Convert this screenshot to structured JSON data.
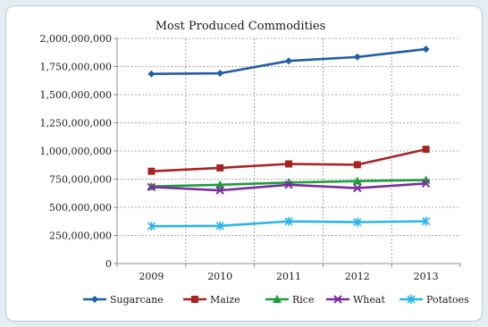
{
  "chart_data": {
    "type": "line",
    "title": "Most Produced Commodities",
    "xlabel": "",
    "ylabel": "",
    "categories": [
      "2009",
      "2010",
      "2011",
      "2012",
      "2013"
    ],
    "ylim": [
      0,
      2000000000
    ],
    "yticks": [
      0,
      250000000,
      500000000,
      750000000,
      1000000000,
      1250000000,
      1500000000,
      1750000000,
      2000000000
    ],
    "ytick_labels": [
      "0",
      "250,000,000",
      "500,000,000",
      "750,000,000",
      "1,000,000,000",
      "1,250,000,000",
      "1,500,000,000",
      "1,750,000,000",
      "2,000,000,000"
    ],
    "grid": true,
    "legend_position": "bottom",
    "series": [
      {
        "name": "Sugarcane",
        "color": "#1f5fa8",
        "marker": "diamond",
        "values": [
          1685000000,
          1690000000,
          1800000000,
          1835000000,
          1905000000
        ]
      },
      {
        "name": "Maize",
        "color": "#a82424",
        "marker": "square",
        "values": [
          820000000,
          850000000,
          885000000,
          878000000,
          1015000000
        ]
      },
      {
        "name": "Rice",
        "color": "#1e9e3a",
        "marker": "triangle",
        "values": [
          685000000,
          700000000,
          720000000,
          733000000,
          742000000
        ]
      },
      {
        "name": "Wheat",
        "color": "#7a2e9e",
        "marker": "x",
        "values": [
          680000000,
          650000000,
          700000000,
          670000000,
          712000000
        ]
      },
      {
        "name": "Potatoes",
        "color": "#29b5e8",
        "marker": "star",
        "values": [
          332000000,
          335000000,
          375000000,
          368000000,
          376000000
        ]
      }
    ]
  }
}
